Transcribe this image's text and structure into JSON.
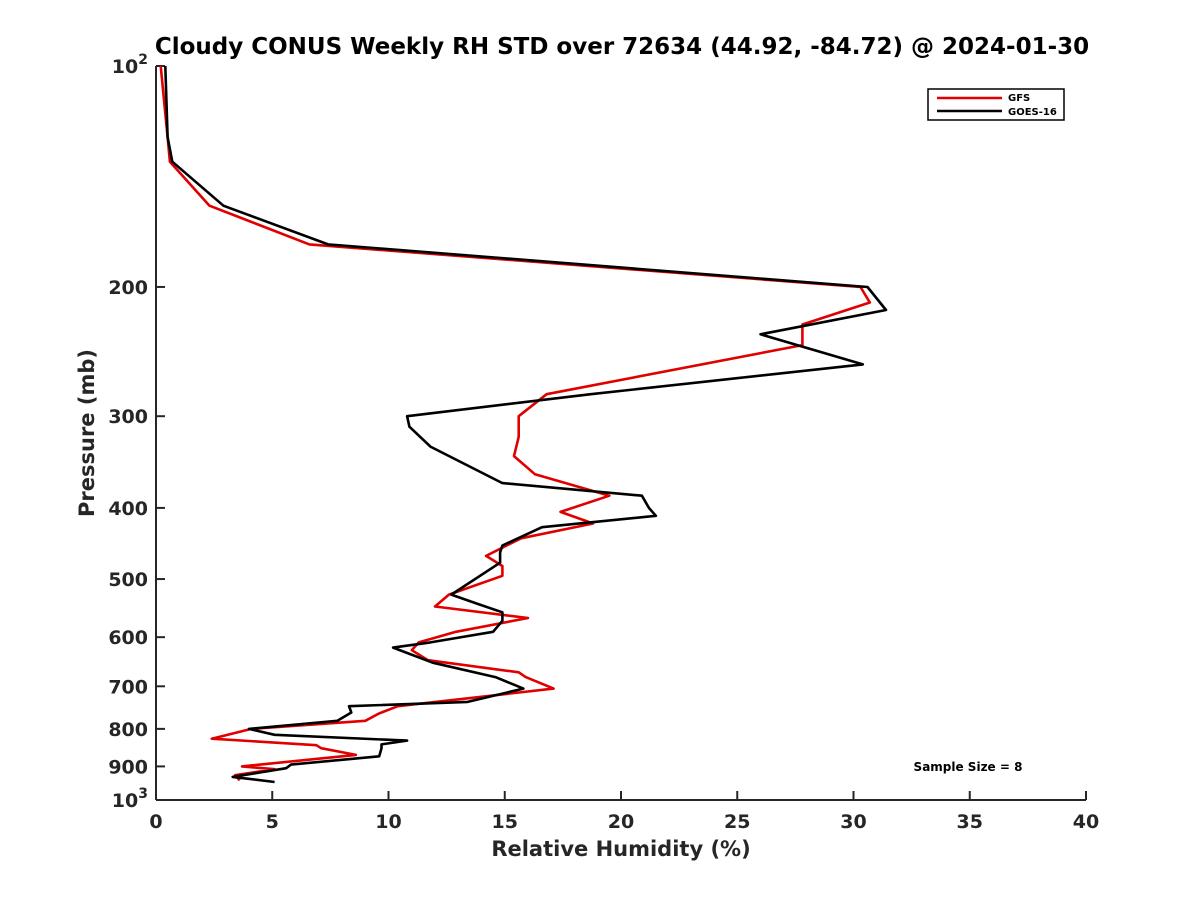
{
  "chart_data": {
    "type": "line",
    "title": "Cloudy CONUS Weekly RH STD over 72634 (44.92, -84.72) @ 2024-01-30",
    "xlabel": "Relative Humidity (%)",
    "ylabel": "Pressure (mb)",
    "xlim": [
      0,
      40
    ],
    "ylim": [
      100,
      1000
    ],
    "y_scale": "log",
    "y_reversed": true,
    "x_ticks": [
      "0",
      "5",
      "10",
      "15",
      "20",
      "25",
      "30",
      "35",
      "40"
    ],
    "y_ticks": [
      {
        "value": 100,
        "base": "10",
        "exp": "2"
      },
      {
        "value": 200,
        "label": "200"
      },
      {
        "value": 300,
        "label": "300"
      },
      {
        "value": 400,
        "label": "400"
      },
      {
        "value": 500,
        "label": "500"
      },
      {
        "value": 600,
        "label": "600"
      },
      {
        "value": 700,
        "label": "700"
      },
      {
        "value": 800,
        "label": "800"
      },
      {
        "value": 900,
        "label": "900"
      },
      {
        "value": 1000,
        "base": "10",
        "exp": "3"
      }
    ],
    "legend_position": "top-right",
    "grid": false,
    "annotation": "Sample Size = 8",
    "series": [
      {
        "name": "GFS",
        "color": "#e00000",
        "points": [
          [
            0.2,
            100
          ],
          [
            0.5,
            125
          ],
          [
            0.6,
            135
          ],
          [
            2.3,
            155
          ],
          [
            6.6,
            175
          ],
          [
            30.3,
            200
          ],
          [
            30.7,
            210
          ],
          [
            27.8,
            225
          ],
          [
            27.8,
            240
          ],
          [
            16.8,
            280
          ],
          [
            15.6,
            300
          ],
          [
            15.6,
            320
          ],
          [
            15.4,
            340
          ],
          [
            16.3,
            360
          ],
          [
            19.5,
            385
          ],
          [
            17.4,
            405
          ],
          [
            18.8,
            420
          ],
          [
            15.7,
            440
          ],
          [
            14.2,
            465
          ],
          [
            14.9,
            480
          ],
          [
            14.9,
            495
          ],
          [
            12.6,
            525
          ],
          [
            12.0,
            545
          ],
          [
            16.0,
            565
          ],
          [
            12.9,
            590
          ],
          [
            11.3,
            610
          ],
          [
            11.0,
            625
          ],
          [
            11.7,
            645
          ],
          [
            15.6,
            670
          ],
          [
            15.9,
            680
          ],
          [
            17.1,
            705
          ],
          [
            10.4,
            745
          ],
          [
            9.6,
            762
          ],
          [
            9.0,
            780
          ],
          [
            4.1,
            800
          ],
          [
            2.4,
            825
          ],
          [
            6.9,
            842
          ],
          [
            7.1,
            850
          ],
          [
            8.6,
            868
          ],
          [
            3.7,
            900
          ],
          [
            5.1,
            908
          ],
          [
            3.4,
            925
          ],
          [
            3.6,
            940
          ]
        ]
      },
      {
        "name": "GOES-16",
        "color": "#000000",
        "points": [
          [
            0.4,
            100
          ],
          [
            0.5,
            125
          ],
          [
            0.7,
            135
          ],
          [
            2.9,
            155
          ],
          [
            7.4,
            175
          ],
          [
            30.6,
            200
          ],
          [
            31.4,
            215
          ],
          [
            26.0,
            232
          ],
          [
            30.4,
            255
          ],
          [
            18.7,
            280
          ],
          [
            10.8,
            300
          ],
          [
            10.9,
            310
          ],
          [
            11.8,
            330
          ],
          [
            14.9,
            370
          ],
          [
            20.9,
            385
          ],
          [
            21.2,
            400
          ],
          [
            21.5,
            410
          ],
          [
            16.6,
            425
          ],
          [
            14.9,
            450
          ],
          [
            14.8,
            460
          ],
          [
            14.8,
            475
          ],
          [
            12.7,
            525
          ],
          [
            13.8,
            540
          ],
          [
            14.9,
            555
          ],
          [
            14.9,
            570
          ],
          [
            14.5,
            590
          ],
          [
            11.8,
            610
          ],
          [
            10.2,
            620
          ],
          [
            11.9,
            650
          ],
          [
            14.6,
            680
          ],
          [
            15.8,
            705
          ],
          [
            13.4,
            735
          ],
          [
            8.3,
            745
          ],
          [
            8.4,
            760
          ],
          [
            7.8,
            780
          ],
          [
            4.0,
            800
          ],
          [
            5.1,
            815
          ],
          [
            10.8,
            830
          ],
          [
            9.7,
            840
          ],
          [
            9.7,
            850
          ],
          [
            9.6,
            872
          ],
          [
            5.8,
            895
          ],
          [
            5.6,
            905
          ],
          [
            3.3,
            930
          ],
          [
            5.1,
            945
          ]
        ]
      }
    ]
  }
}
